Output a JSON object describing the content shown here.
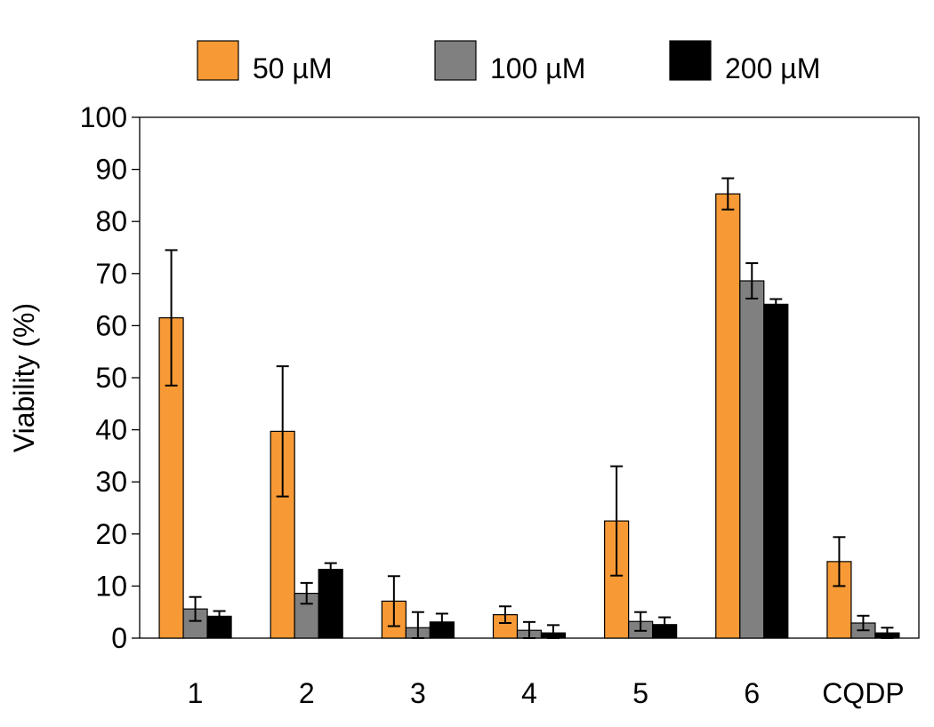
{
  "chart_data": {
    "type": "bar",
    "title": "",
    "xlabel": "",
    "ylabel": "Viability (%)",
    "ylim": [
      0,
      100
    ],
    "yticks": [
      "0",
      "10",
      "20",
      "30",
      "40",
      "50",
      "60",
      "70",
      "80",
      "90",
      "100"
    ],
    "grid": false,
    "legend_position": "top",
    "categories": [
      "1",
      "2",
      "3",
      "4",
      "5",
      "6",
      "CQDP"
    ],
    "series": [
      {
        "name": "50 µM",
        "color": "#F79A36",
        "values": [
          61.5,
          39.7,
          7.1,
          4.5,
          22.5,
          85.3,
          14.7
        ],
        "errors": [
          13.0,
          12.5,
          4.8,
          1.6,
          10.5,
          3.0,
          4.7
        ]
      },
      {
        "name": "100 µM",
        "color": "#808080",
        "values": [
          5.6,
          8.6,
          2.0,
          1.5,
          3.2,
          68.6,
          2.9
        ],
        "errors": [
          2.3,
          2.0,
          3.0,
          1.6,
          1.8,
          3.4,
          1.4
        ]
      },
      {
        "name": "200 µM",
        "color": "#000000",
        "values": [
          4.2,
          13.2,
          3.1,
          1.0,
          2.6,
          64.1,
          1.0
        ],
        "errors": [
          1.0,
          1.2,
          1.6,
          1.5,
          1.4,
          1.0,
          1.0
        ]
      }
    ]
  }
}
